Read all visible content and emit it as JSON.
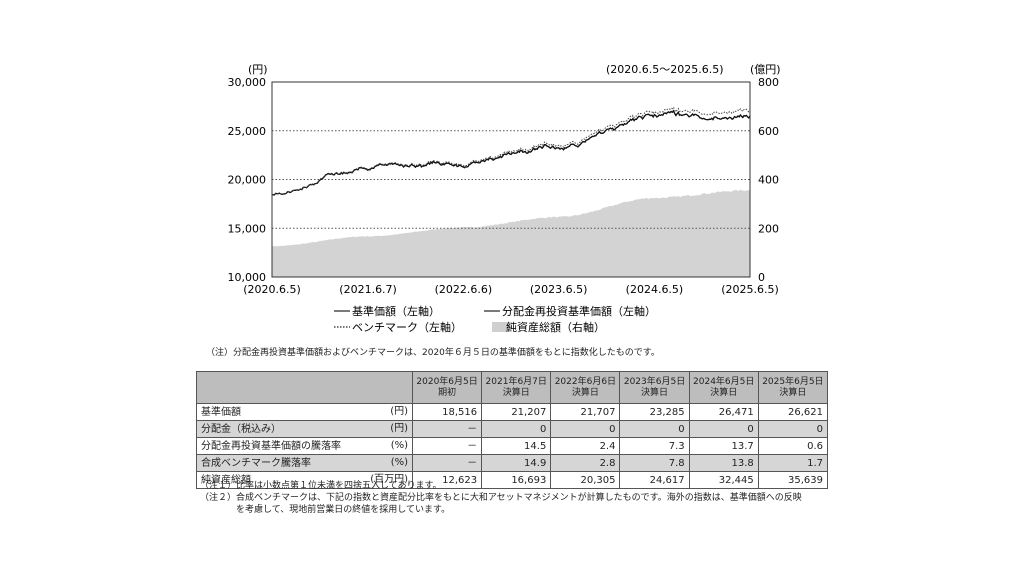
{
  "chart_data": {
    "type": "line",
    "period_label": "(2020.6.5～2025.6.5)",
    "left_unit": "(円)",
    "right_unit": "(億円)",
    "left_axis": {
      "ylim": [
        10000,
        30000
      ],
      "ticks": [
        "10,000",
        "15,000",
        "20,000",
        "25,000",
        "30,000"
      ]
    },
    "right_axis": {
      "ylim": [
        0,
        800
      ],
      "ticks": [
        "0",
        "200",
        "400",
        "600",
        "800"
      ]
    },
    "x_ticks": [
      "(2020.6.5)",
      "(2021.6.7)",
      "(2022.6.6)",
      "(2023.6.5)",
      "(2024.6.5)",
      "(2025.6.5)"
    ],
    "x": [
      "2020-06-05",
      "2021-06-07",
      "2022-06-06",
      "2023-06-05",
      "2024-06-05",
      "2025-06-05"
    ],
    "series": [
      {
        "name": "基準価額（左軸）",
        "axis": "left",
        "style": "solid",
        "values": [
          18516,
          21207,
          21707,
          23285,
          26471,
          26621
        ]
      },
      {
        "name": "分配金再投資基準価額（左軸）",
        "axis": "left",
        "style": "solid-dark",
        "values": [
          18516,
          21207,
          21707,
          23285,
          26471,
          26621
        ]
      },
      {
        "name": "ベンチマーク（左軸）",
        "axis": "left",
        "style": "dotted",
        "values": [
          18516,
          21270,
          21850,
          23550,
          26800,
          27250
        ]
      },
      {
        "name": "純資産総額（右軸）",
        "axis": "right",
        "style": "area",
        "values": [
          126.23,
          166.93,
          203.05,
          246.17,
          324.45,
          356.39
        ]
      }
    ],
    "gridlines": "dotted"
  },
  "chart_note": "（注）分配金再投資基準価額およびベンチマークは、2020年６月５日の基準価額をもとに指数化したものです。",
  "table": {
    "columns": [
      {
        "top": "2020年6月5日",
        "bottom": "期初"
      },
      {
        "top": "2021年6月7日",
        "bottom": "決算日"
      },
      {
        "top": "2022年6月6日",
        "bottom": "決算日"
      },
      {
        "top": "2023年6月5日",
        "bottom": "決算日"
      },
      {
        "top": "2024年6月5日",
        "bottom": "決算日"
      },
      {
        "top": "2025年6月5日",
        "bottom": "決算日"
      }
    ],
    "rows": [
      {
        "label": "基準価額",
        "unit": "(円)",
        "cells": [
          "18,516",
          "21,207",
          "21,707",
          "23,285",
          "26,471",
          "26,621"
        ]
      },
      {
        "label": "分配金（税込み）",
        "unit": "(円)",
        "cells": [
          "－",
          "0",
          "0",
          "0",
          "0",
          "0"
        ]
      },
      {
        "label": "分配金再投資基準価額の騰落率",
        "unit": "(%)",
        "cells": [
          "－",
          "14.5",
          "2.4",
          "7.3",
          "13.7",
          "0.6"
        ]
      },
      {
        "label": "合成ベンチマーク騰落率",
        "unit": "(%)",
        "cells": [
          "－",
          "14.9",
          "2.8",
          "7.8",
          "13.8",
          "1.7"
        ]
      },
      {
        "label": "純資産総額",
        "unit": "(百万円)",
        "cells": [
          "12,623",
          "16,693",
          "20,305",
          "24,617",
          "32,445",
          "35,639"
        ]
      }
    ]
  },
  "footnotes": [
    "（注１）比率は小数点第１位未満を四捨五入してあります。",
    "（注２）合成ベンチマークは、下記の指数と資産配分比率をもとに大和アセットマネジメントが計算したものです。海外の指数は、基準価額への反映",
    "　　　　を考慮して、現地前営業日の終値を採用しています。"
  ]
}
